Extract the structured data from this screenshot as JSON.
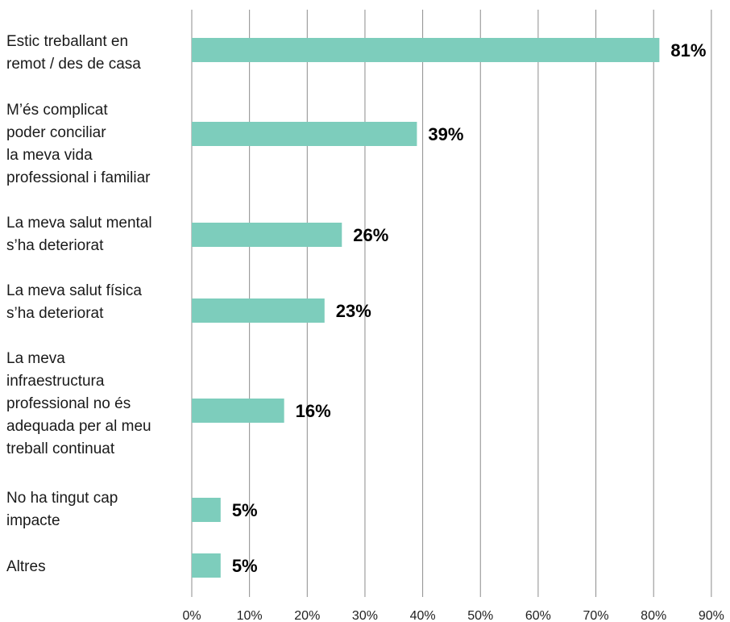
{
  "chart_data": {
    "type": "bar",
    "orientation": "horizontal",
    "categories": [
      [
        "Estic treballant en",
        "remot / des de casa"
      ],
      [
        "M’és complicat",
        "poder conciliar",
        "la meva vida",
        "professional i familiar"
      ],
      [
        "La meva salut mental",
        "s’ha deteriorat"
      ],
      [
        "La meva salut física",
        "s’ha deteriorat"
      ],
      [
        "La meva",
        "infraestructura",
        "professional no és",
        "adequada per al meu",
        "treball continuat"
      ],
      [
        "No ha tingut cap",
        "impacte"
      ],
      [
        "Altres"
      ]
    ],
    "values": [
      81,
      39,
      26,
      23,
      16,
      5,
      5
    ],
    "value_labels": [
      "81%",
      "39%",
      "26%",
      "23%",
      "16%",
      "5%",
      "5%"
    ],
    "xlim": [
      0,
      90
    ],
    "x_ticks": [
      0,
      10,
      20,
      30,
      40,
      50,
      60,
      70,
      80,
      90
    ],
    "x_tick_labels": [
      "0%",
      "10%",
      "20%",
      "30%",
      "40%",
      "50%",
      "60%",
      "70%",
      "80%",
      "90%"
    ],
    "bar_color": "#7dcdbc",
    "grid": true,
    "legend": "none"
  }
}
